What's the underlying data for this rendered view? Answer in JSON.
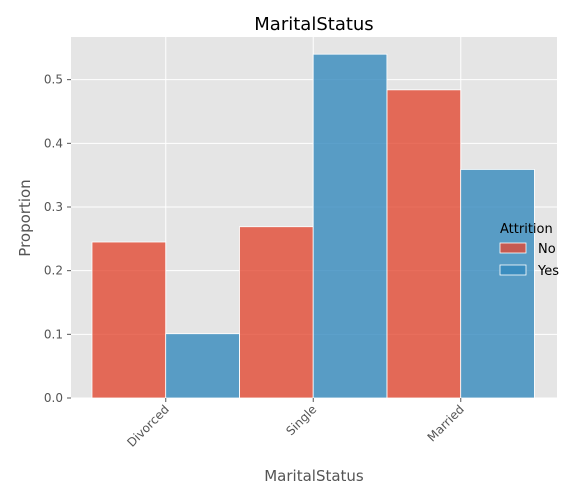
{
  "chart_data": {
    "type": "bar",
    "title": "MaritalStatus",
    "xlabel": "MaritalStatus",
    "ylabel": "Proportion",
    "categories": [
      "Divorced",
      "Single",
      "Married"
    ],
    "series": [
      {
        "name": "No",
        "values": [
          0.245,
          0.269,
          0.484
        ],
        "color": "#E24A33"
      },
      {
        "name": "Yes",
        "values": [
          0.101,
          0.54,
          0.359
        ],
        "color": "#348ABD"
      }
    ],
    "yticks": [
      "0.0",
      "0.1",
      "0.2",
      "0.3",
      "0.4",
      "0.5"
    ],
    "ytick_values": [
      0.0,
      0.1,
      0.2,
      0.3,
      0.4,
      0.5
    ],
    "ylim": [
      0,
      0.567
    ],
    "legend_title": "Attrition",
    "legend_position": "right",
    "background_color": "#E5E5E5",
    "bar_opacity": 0.8,
    "grid": true
  }
}
